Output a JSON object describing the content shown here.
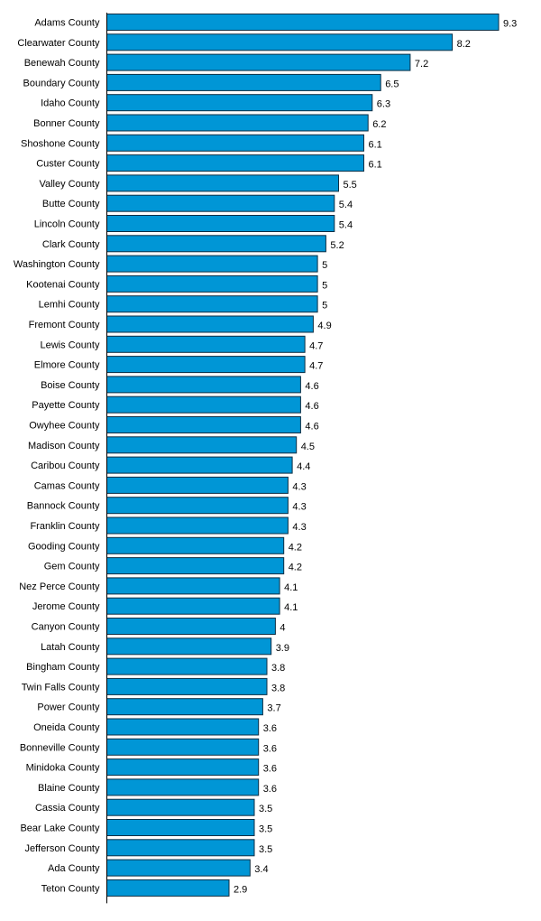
{
  "chart_data": {
    "type": "bar",
    "orientation": "horizontal",
    "title": "",
    "xlabel": "",
    "ylabel": "",
    "categories": [
      "Adams County",
      "Clearwater County",
      "Benewah County",
      "Boundary County",
      "Idaho County",
      "Bonner County",
      "Shoshone County",
      "Custer County",
      "Valley County",
      "Butte County",
      "Lincoln County",
      "Clark County",
      "Washington County",
      "Kootenai County",
      "Lemhi County",
      "Fremont County",
      "Lewis County",
      "Elmore County",
      "Boise County",
      "Payette County",
      "Owyhee County",
      "Madison County",
      "Caribou County",
      "Camas County",
      "Bannock County",
      "Franklin County",
      "Gooding County",
      "Gem County",
      "Nez Perce County",
      "Jerome County",
      "Canyon County",
      "Latah County",
      "Bingham County",
      "Twin Falls County",
      "Power County",
      "Oneida County",
      "Bonneville County",
      "Minidoka County",
      "Blaine County",
      "Cassia County",
      "Bear Lake County",
      "Jefferson County",
      "Ada County",
      "Teton County"
    ],
    "values": [
      9.3,
      8.2,
      7.2,
      6.5,
      6.3,
      6.2,
      6.1,
      6.1,
      5.5,
      5.4,
      5.4,
      5.2,
      5,
      5,
      5,
      4.9,
      4.7,
      4.7,
      4.6,
      4.6,
      4.6,
      4.5,
      4.4,
      4.3,
      4.3,
      4.3,
      4.2,
      4.2,
      4.1,
      4.1,
      4,
      3.9,
      3.8,
      3.8,
      3.7,
      3.6,
      3.6,
      3.6,
      3.6,
      3.5,
      3.5,
      3.5,
      3.4,
      2.9
    ],
    "xlim": [
      0,
      9.3
    ],
    "grid": false,
    "legend": "none",
    "bar_color": "#0096d6",
    "bar_edge_color": "#0b2e44"
  }
}
